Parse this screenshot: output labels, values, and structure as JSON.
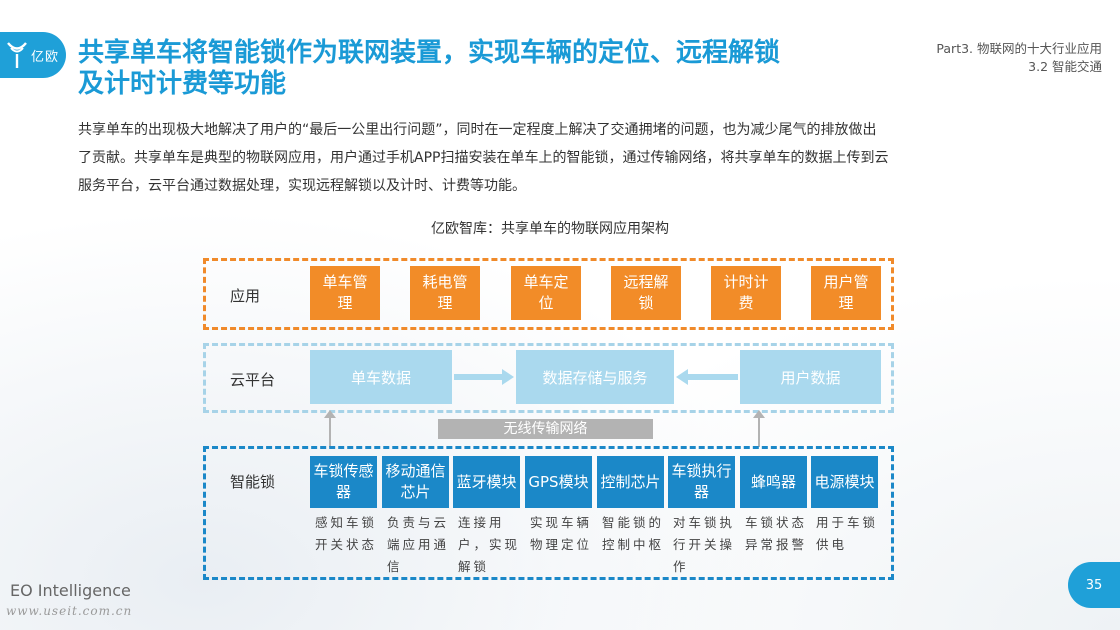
{
  "header": {
    "logo_text": "亿欧",
    "title_line1": "共享单车将智能锁作为联网装置，实现车辆的定位、远程解锁",
    "title_line2": "及计时计费等功能",
    "part_line1": "Part3. 物联网的十大行业应用",
    "part_line2": "3.2 智能交通"
  },
  "intro": {
    "line1": "共享单车的出现极大地解决了用户的“最后一公里出行问题”，同时在一定程度上解决了交通拥堵的问题，也为减少尾气的排放做出",
    "line2": "了贡献。共享单车是典型的物联网应用，用户通过手机APP扫描安装在单车上的智能锁，通过传输网络，将共享单车的数据上传到云",
    "line3": "服务平台，云平台通过数据处理，实现远程解锁以及计时、计费等功能。"
  },
  "diagram": {
    "subtitle": "亿欧智库：共享单车的物联网应用架构",
    "app_layer": {
      "label": "应用",
      "items": [
        "单车管理",
        "耗电管理",
        "单车定位",
        "远程解锁",
        "计时计费",
        "用户管理"
      ]
    },
    "cloud_layer": {
      "label": "云平台",
      "left": "单车数据",
      "center": "数据存储与服务",
      "right": "用户数据"
    },
    "network_label": "无线传输网络",
    "lock_layer": {
      "label": "智能锁",
      "items": [
        {
          "name": "车锁传感器",
          "desc": "感知车锁开关状态"
        },
        {
          "name": "移动通信芯片",
          "desc": "负责与云端应用通信"
        },
        {
          "name": "蓝牙模块",
          "desc": "连接用户，实现解锁"
        },
        {
          "name": "GPS模块",
          "desc": "实现车辆物理定位"
        },
        {
          "name": "控制芯片",
          "desc": "智能锁的控制中枢"
        },
        {
          "name": "车锁执行器",
          "desc": "对车锁执行开关操作"
        },
        {
          "name": "蜂鸣器",
          "desc": "车锁状态异常报警"
        },
        {
          "name": "电源模块",
          "desc": "用于车锁供电"
        }
      ]
    },
    "colors": {
      "app": "#f28c28",
      "cloud": "#aad9ee",
      "lock": "#1b88c8",
      "accent": "#1fa0d8"
    }
  },
  "footer": {
    "brand": "EO Intelligence",
    "watermark": "www.useit.com.cn",
    "page_number": "35"
  }
}
